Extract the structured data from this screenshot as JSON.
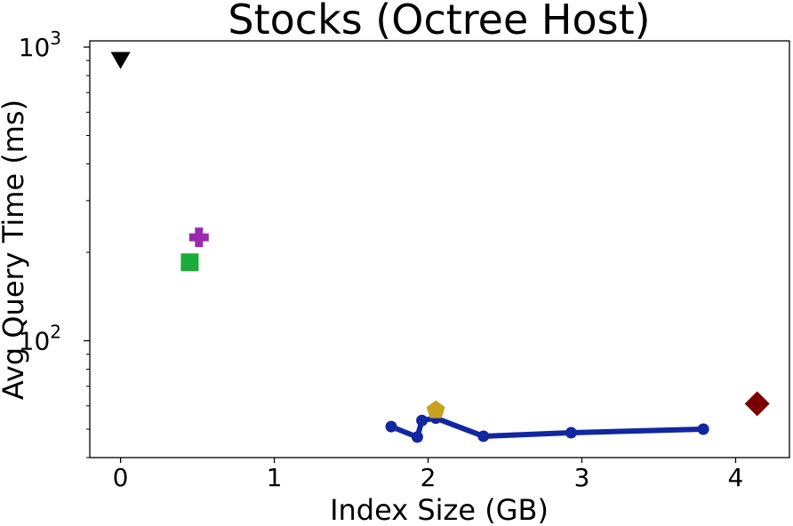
{
  "chart_data": {
    "type": "scatter",
    "title": "Stocks (Octree Host)",
    "xlabel": "Index Size (GB)",
    "ylabel": "Avg Query Time (ms)",
    "xlim": [
      -0.2,
      4.35
    ],
    "ylim": [
      40,
      1050
    ],
    "yscale": "log",
    "grid": false,
    "legend": "none",
    "x_ticks": [
      {
        "value": 0,
        "label": "0"
      },
      {
        "value": 1,
        "label": "1"
      },
      {
        "value": 2,
        "label": "2"
      },
      {
        "value": 3,
        "label": "3"
      },
      {
        "value": 4,
        "label": "4"
      }
    ],
    "y_ticks": [
      {
        "value": 100,
        "base": "10",
        "exp": "2"
      },
      {
        "value": 1000,
        "base": "10",
        "exp": "3"
      }
    ],
    "series": [
      {
        "marker": "triangle-down",
        "color": "#000000",
        "line": false,
        "points": [
          {
            "x": 0.0,
            "y": 905
          }
        ]
      },
      {
        "marker": "plus",
        "color": "#9b2aae",
        "line": false,
        "points": [
          {
            "x": 0.51,
            "y": 225
          }
        ]
      },
      {
        "marker": "square",
        "color": "#1aab3a",
        "line": false,
        "points": [
          {
            "x": 0.45,
            "y": 185
          }
        ]
      },
      {
        "marker": "circle",
        "color": "#1226a0",
        "line": true,
        "points": [
          {
            "x": 1.76,
            "y": 51
          },
          {
            "x": 1.93,
            "y": 47
          },
          {
            "x": 1.96,
            "y": 53.5
          },
          {
            "x": 2.05,
            "y": 54.5
          },
          {
            "x": 2.36,
            "y": 47.3
          },
          {
            "x": 2.93,
            "y": 48.6
          },
          {
            "x": 3.79,
            "y": 50
          }
        ]
      },
      {
        "marker": "pentagon",
        "color": "#c9a020",
        "line": false,
        "points": [
          {
            "x": 2.05,
            "y": 58
          }
        ]
      },
      {
        "marker": "diamond",
        "color": "#7a0000",
        "line": false,
        "points": [
          {
            "x": 4.14,
            "y": 61
          }
        ]
      }
    ]
  }
}
